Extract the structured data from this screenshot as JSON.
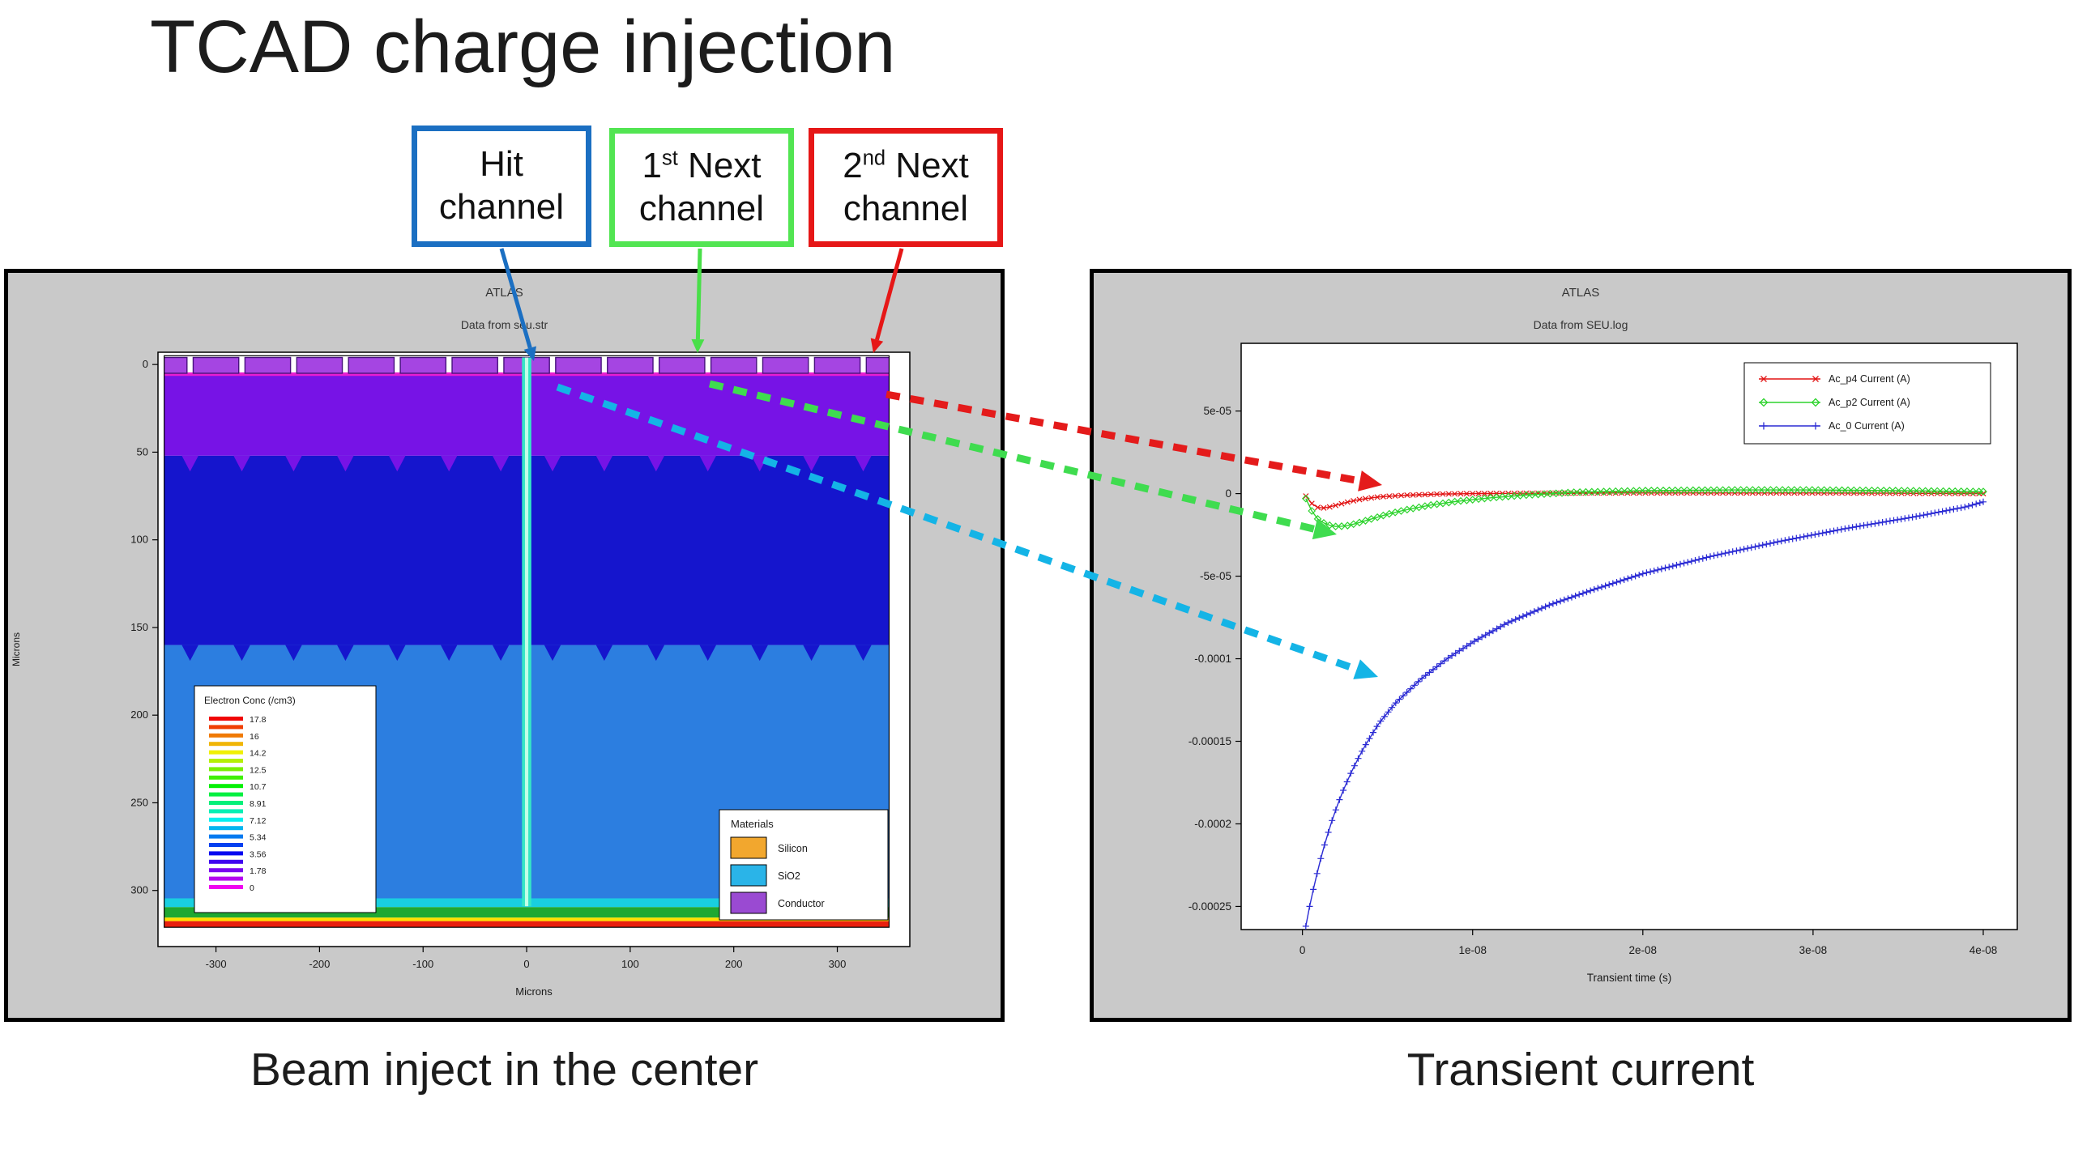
{
  "slide": {
    "title": "TCAD charge injection",
    "caption_left": "Beam inject in the center",
    "caption_right": "Transient current"
  },
  "channel_labels": [
    {
      "pre": "Hit",
      "sup": "",
      "post": "",
      "line2": "channel",
      "color": "#1b6fc2"
    },
    {
      "pre": "1",
      "sup": "st",
      "post": " Next",
      "line2": "channel",
      "color": "#52e552"
    },
    {
      "pre": "2",
      "sup": "nd",
      "post": " Next",
      "line2": "channel",
      "color": "#e61717"
    }
  ],
  "chart_data": [
    {
      "id": "device-cross-section",
      "type": "heatmap",
      "title": "ATLAS",
      "subtitle": "Data from seu.str",
      "xlabel": "Microns",
      "ylabel": "Microns",
      "xlim": [
        -356,
        370
      ],
      "depth_lim": [
        -7,
        332
      ],
      "x_ticks": [
        -300,
        -200,
        -100,
        0,
        100,
        200,
        300
      ],
      "y_ticks": [
        0,
        50,
        100,
        150,
        200,
        250,
        300
      ],
      "grid": false,
      "device": {
        "x_extent": [
          -350,
          350
        ],
        "channel_row": {
          "y_top": -4,
          "y_bot": 5,
          "center_start": -350,
          "step": 50,
          "count": 15,
          "width": 44,
          "fill": "#a545e2",
          "edge": "#47127d"
        },
        "surface_line": {
          "y_top": 4.5,
          "y_bot": 6.5,
          "color": "#e81ed2"
        },
        "layers": [
          {
            "name": "high-conc-violet",
            "y": [
              6,
              52
            ],
            "fill": "#7713e6",
            "scallop_tip": 61
          },
          {
            "name": "dark-blue-bulk",
            "y": [
              52,
              160
            ],
            "fill": "#1515cd",
            "scallop_tip": 169
          },
          {
            "name": "mid-blue-bulk",
            "y": [
              160,
              307
            ],
            "fill": "#2c7ee0"
          },
          {
            "name": "backside-cyan",
            "y": [
              304.5,
              309.5
            ],
            "fill": "#19cfe0"
          },
          {
            "name": "backside-green",
            "y": [
              309.5,
              315.5
            ],
            "fill": "#1fa832"
          },
          {
            "name": "backside-yellow",
            "y": [
              315.5,
              317.5
            ],
            "fill": "#ffe000"
          },
          {
            "name": "backside-red",
            "y": [
              317.5,
              321
            ],
            "fill": "#e8200f"
          }
        ],
        "scallop": {
          "offset": 25,
          "step": 50,
          "half_width": 8
        },
        "beam": {
          "x": 0,
          "half_width": 4.5,
          "y": [
            -4,
            309
          ],
          "fill": "#35e6c6",
          "core_half_width": 1.6,
          "core_fill": "#c2ffe6"
        }
      },
      "colorbar": {
        "title": "Electron Conc (/cm3)",
        "bars": 21,
        "tick_labels": [
          "17.8",
          "16",
          "14.2",
          "12.5",
          "10.7",
          "8.91",
          "7.12",
          "5.34",
          "3.56",
          "1.78",
          "0"
        ]
      },
      "materials_legend": {
        "title": "Materials",
        "items": [
          {
            "name": "Silicon",
            "color": "#f2a72e"
          },
          {
            "name": "SiO2",
            "color": "#2ab4e8"
          },
          {
            "name": "Conductor",
            "color": "#9a4ad2"
          }
        ]
      }
    },
    {
      "id": "transient-current",
      "type": "line",
      "title": "ATLAS",
      "subtitle": "Data from SEU.log",
      "xlabel": "Transient time (s)",
      "xlim": [
        -3.6e-09,
        4.2e-08
      ],
      "ylim": [
        -0.000264,
        9.1e-05
      ],
      "grid": false,
      "legend_position": "top-right",
      "x_ticks": [
        {
          "v": 0,
          "label": "0"
        },
        {
          "v": 1e-08,
          "label": "1e-08"
        },
        {
          "v": 2e-08,
          "label": "2e-08"
        },
        {
          "v": 3e-08,
          "label": "3e-08"
        },
        {
          "v": 4e-08,
          "label": "4e-08"
        }
      ],
      "y_ticks": [
        {
          "v": 5e-05,
          "label": "5e-05"
        },
        {
          "v": 0,
          "label": "0"
        },
        {
          "v": -5e-05,
          "label": "-5e-05"
        },
        {
          "v": -0.0001,
          "label": "-0.0001"
        },
        {
          "v": -0.00015,
          "label": "-0.00015"
        },
        {
          "v": -0.0002,
          "label": "-0.0002"
        },
        {
          "v": -0.00025,
          "label": "-0.00025"
        }
      ],
      "series": [
        {
          "name": "Ac_p4 Current (A)",
          "color": "#e21414",
          "marker": "x",
          "marker_step": 3.5e-10,
          "points": [
            [
              2e-10,
              -1.5e-06
            ],
            [
              4e-10,
              -4.5e-06
            ],
            [
              7e-10,
              -7.5e-06
            ],
            [
              1e-09,
              -8.8e-06
            ],
            [
              1.4e-09,
              -8.6e-06
            ],
            [
              2e-09,
              -7e-06
            ],
            [
              2.7e-09,
              -5e-06
            ],
            [
              3.5e-09,
              -3.3e-06
            ],
            [
              4.5e-09,
              -2e-06
            ],
            [
              6e-09,
              -1e-06
            ],
            [
              8e-09,
              -3e-07
            ],
            [
              1e-08,
              0
            ],
            [
              1.5e-08,
              3e-07
            ],
            [
              2e-08,
              4e-07
            ],
            [
              3e-08,
              4e-07
            ],
            [
              4e-08,
              0
            ]
          ]
        },
        {
          "name": "Ac_p2 Current (A)",
          "color": "#2ed32e",
          "marker": "diamond",
          "marker_step": 3.5e-10,
          "points": [
            [
              2e-10,
              -3e-06
            ],
            [
              4e-10,
              -8e-06
            ],
            [
              7e-10,
              -1.3e-05
            ],
            [
              1e-09,
              -1.65e-05
            ],
            [
              1.5e-09,
              -1.9e-05
            ],
            [
              2e-09,
              -2e-05
            ],
            [
              2.6e-09,
              -1.95e-05
            ],
            [
              3.2e-09,
              -1.8e-05
            ],
            [
              4e-09,
              -1.55e-05
            ],
            [
              5e-09,
              -1.25e-05
            ],
            [
              6e-09,
              -1e-05
            ],
            [
              7.5e-09,
              -7e-06
            ],
            [
              9e-09,
              -4.8e-06
            ],
            [
              1.1e-08,
              -2.6e-06
            ],
            [
              1.3e-08,
              -1e-06
            ],
            [
              1.6e-08,
              8e-07
            ],
            [
              2e-08,
              1.8e-06
            ],
            [
              2.5e-08,
              2.2e-06
            ],
            [
              3e-08,
              2.2e-06
            ],
            [
              3.5e-08,
              1.8e-06
            ],
            [
              4e-08,
              1.2e-06
            ]
          ]
        },
        {
          "name": "Ac_0 Current (A)",
          "color": "#2b2bd4",
          "marker": "plus",
          "marker_step": 2.2e-10,
          "points": [
            [
              2e-10,
              -0.000262
            ],
            [
              3e-10,
              -0.000256
            ],
            [
              5e-10,
              -0.000246
            ],
            [
              7e-10,
              -0.000237
            ],
            [
              1e-09,
              -0.000224
            ],
            [
              1.4e-09,
              -0.000209
            ],
            [
              1.8e-09,
              -0.000196
            ],
            [
              2.3e-09,
              -0.000182
            ],
            [
              2.9e-09,
              -0.000168
            ],
            [
              3.6e-09,
              -0.000154
            ],
            [
              4.5e-09,
              -0.000139
            ],
            [
              5.5e-09,
              -0.0001265
            ],
            [
              7e-09,
              -0.000112
            ],
            [
              8.5e-09,
              -0.0001
            ],
            [
              1e-08,
              -9e-05
            ],
            [
              1.2e-08,
              -7.85e-05
            ],
            [
              1.45e-08,
              -6.75e-05
            ],
            [
              1.7e-08,
              -5.85e-05
            ],
            [
              2e-08,
              -4.85e-05
            ],
            [
              2.4e-08,
              -3.8e-05
            ],
            [
              2.8e-08,
              -2.9e-05
            ],
            [
              3.2e-08,
              -2.1e-05
            ],
            [
              3.6e-08,
              -1.4e-05
            ],
            [
              3.9e-08,
              -8e-06
            ],
            [
              4e-08,
              -5e-06
            ]
          ]
        }
      ]
    }
  ],
  "annotations": {
    "solid_style": {
      "width": 5,
      "head_len": 17,
      "head_w": 16
    },
    "solid_arrows": [
      {
        "name": "arrow-hit-channel",
        "from": [
          619,
          307
        ],
        "to": [
          659,
          446
        ],
        "color": "#1b6fc2"
      },
      {
        "name": "arrow-1st-next-channel",
        "from": [
          864,
          307
        ],
        "to": [
          861,
          436
        ],
        "color": "#49df49"
      },
      {
        "name": "arrow-2nd-next-channel",
        "from": [
          1113,
          307
        ],
        "to": [
          1078,
          436
        ],
        "color": "#e61717"
      }
    ],
    "dashed_style": {
      "width": 9,
      "dash": "17 13",
      "head_len": 28,
      "head_w": 26
    },
    "dashed_arrows": [
      {
        "name": "arrow-2nd-next-to-red-curve",
        "from": [
          1094,
          487
        ],
        "to": [
          1706,
          599
        ],
        "color": "#e41b1b"
      },
      {
        "name": "arrow-1st-next-to-green-curve",
        "from": [
          876,
          474
        ],
        "to": [
          1650,
          660
        ],
        "color": "#3fdc4f"
      },
      {
        "name": "arrow-hit-to-blue-curve",
        "from": [
          688,
          478
        ],
        "to": [
          1701,
          836
        ],
        "color": "#14b4e6"
      }
    ]
  }
}
